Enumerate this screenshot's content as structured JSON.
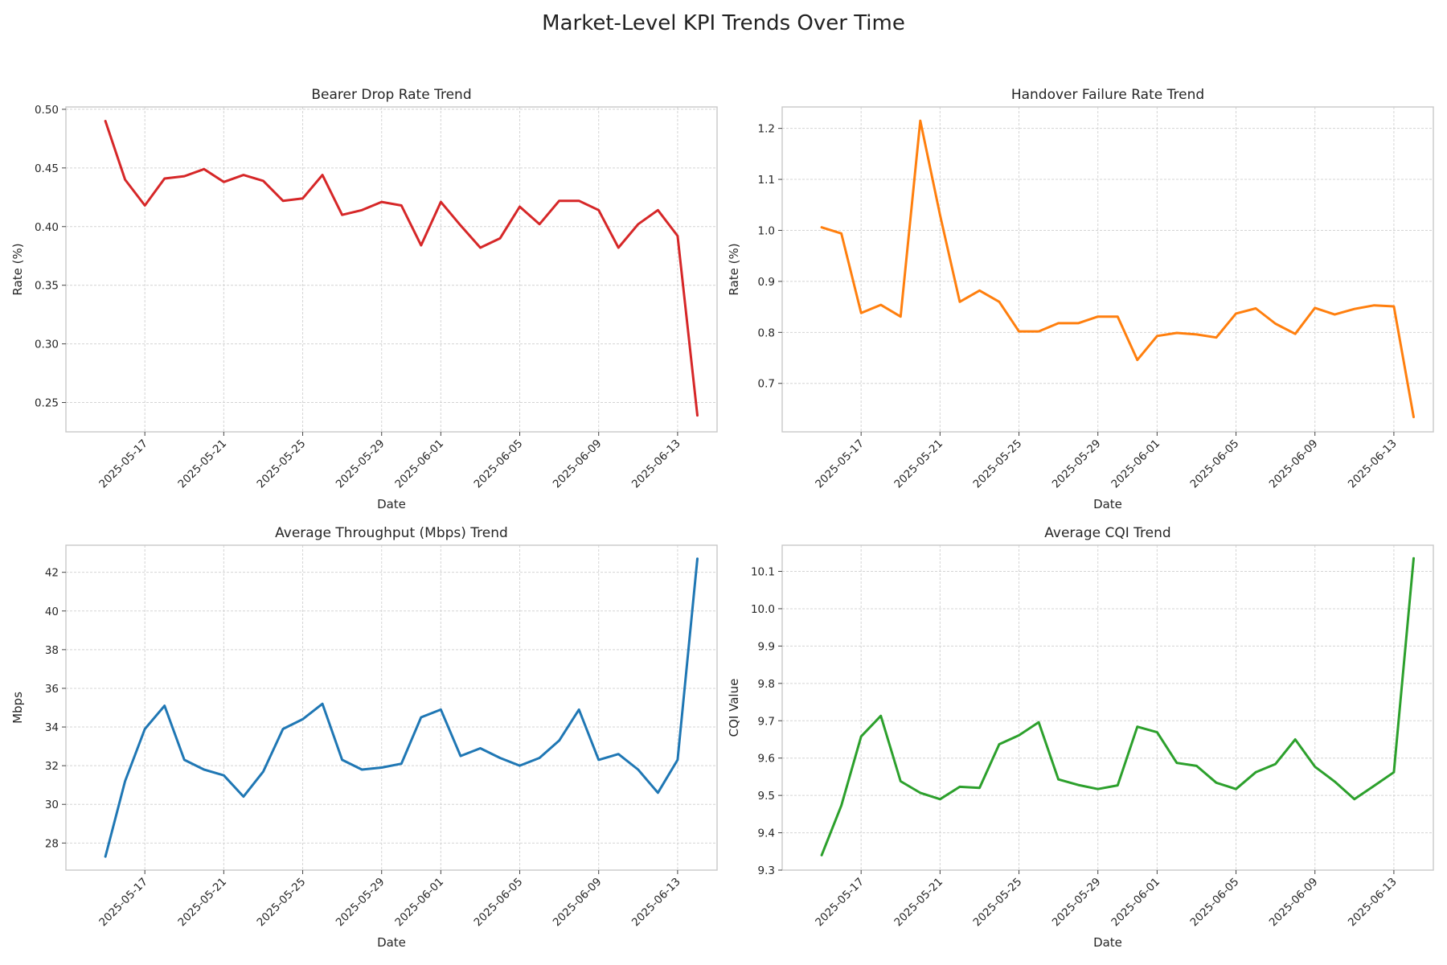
{
  "title": "Market-Level KPI Trends Over Time",
  "chart_data": [
    {
      "type": "line",
      "title": "Bearer Drop Rate Trend",
      "xlabel": "Date",
      "ylabel": "Rate (%)",
      "color": "#d62728",
      "ylim": [
        0.225,
        0.502
      ],
      "yticks": [
        0.25,
        0.3,
        0.35,
        0.4,
        0.45,
        0.5
      ],
      "ytick_labels": [
        "0.25",
        "0.30",
        "0.35",
        "0.40",
        "0.45",
        "0.50"
      ],
      "xlim": [
        "2025-05-13",
        "2025-06-15"
      ],
      "xticks": [
        "2025-05-17",
        "2025-05-21",
        "2025-05-25",
        "2025-05-29",
        "2025-06-01",
        "2025-06-05",
        "2025-06-09",
        "2025-06-13"
      ],
      "grid": true,
      "x": [
        "2025-05-15",
        "2025-05-16",
        "2025-05-17",
        "2025-05-18",
        "2025-05-19",
        "2025-05-20",
        "2025-05-21",
        "2025-05-22",
        "2025-05-23",
        "2025-05-24",
        "2025-05-25",
        "2025-05-26",
        "2025-05-27",
        "2025-05-28",
        "2025-05-29",
        "2025-05-30",
        "2025-05-31",
        "2025-06-01",
        "2025-06-02",
        "2025-06-03",
        "2025-06-04",
        "2025-06-05",
        "2025-06-06",
        "2025-06-07",
        "2025-06-08",
        "2025-06-09",
        "2025-06-10",
        "2025-06-11",
        "2025-06-12",
        "2025-06-13",
        "2025-06-14"
      ],
      "values": [
        0.49,
        0.44,
        0.418,
        0.441,
        0.443,
        0.449,
        0.438,
        0.444,
        0.439,
        0.422,
        0.424,
        0.444,
        0.41,
        0.414,
        0.421,
        0.418,
        0.384,
        0.421,
        0.401,
        0.382,
        0.39,
        0.417,
        0.402,
        0.422,
        0.422,
        0.414,
        0.382,
        0.402,
        0.414,
        0.392,
        0.239
      ]
    },
    {
      "type": "line",
      "title": "Handover Failure Rate Trend",
      "xlabel": "Date",
      "ylabel": "Rate (%)",
      "color": "#ff7f0e",
      "ylim": [
        0.605,
        1.242
      ],
      "yticks": [
        0.7,
        0.8,
        0.9,
        1.0,
        1.1,
        1.2
      ],
      "ytick_labels": [
        "0.7",
        "0.8",
        "0.9",
        "1.0",
        "1.1",
        "1.2"
      ],
      "xlim": [
        "2025-05-13",
        "2025-06-15"
      ],
      "xticks": [
        "2025-05-17",
        "2025-05-21",
        "2025-05-25",
        "2025-05-29",
        "2025-06-01",
        "2025-06-05",
        "2025-06-09",
        "2025-06-13"
      ],
      "grid": true,
      "x": [
        "2025-05-15",
        "2025-05-16",
        "2025-05-17",
        "2025-05-18",
        "2025-05-19",
        "2025-05-20",
        "2025-05-21",
        "2025-05-22",
        "2025-05-23",
        "2025-05-24",
        "2025-05-25",
        "2025-05-26",
        "2025-05-27",
        "2025-05-28",
        "2025-05-29",
        "2025-05-30",
        "2025-05-31",
        "2025-06-01",
        "2025-06-02",
        "2025-06-03",
        "2025-06-04",
        "2025-06-05",
        "2025-06-06",
        "2025-06-07",
        "2025-06-08",
        "2025-06-09",
        "2025-06-10",
        "2025-06-11",
        "2025-06-12",
        "2025-06-13",
        "2025-06-14"
      ],
      "values": [
        1.006,
        0.994,
        0.838,
        0.854,
        0.831,
        1.215,
        1.03,
        0.86,
        0.882,
        0.86,
        0.802,
        0.802,
        0.818,
        0.818,
        0.831,
        0.831,
        0.746,
        0.793,
        0.799,
        0.796,
        0.79,
        0.837,
        0.847,
        0.817,
        0.797,
        0.848,
        0.835,
        0.846,
        0.853,
        0.851,
        0.634
      ]
    },
    {
      "type": "line",
      "title": "Average Throughput (Mbps) Trend",
      "xlabel": "Date",
      "ylabel": "Mbps",
      "color": "#1f77b4",
      "ylim": [
        26.6,
        43.4
      ],
      "yticks": [
        28,
        30,
        32,
        34,
        36,
        38,
        40,
        42
      ],
      "ytick_labels": [
        "28",
        "30",
        "32",
        "34",
        "36",
        "38",
        "40",
        "42"
      ],
      "xlim": [
        "2025-05-13",
        "2025-06-15"
      ],
      "xticks": [
        "2025-05-17",
        "2025-05-21",
        "2025-05-25",
        "2025-05-29",
        "2025-06-01",
        "2025-06-05",
        "2025-06-09",
        "2025-06-13"
      ],
      "grid": true,
      "x": [
        "2025-05-15",
        "2025-05-16",
        "2025-05-17",
        "2025-05-18",
        "2025-05-19",
        "2025-05-20",
        "2025-05-21",
        "2025-05-22",
        "2025-05-23",
        "2025-05-24",
        "2025-05-25",
        "2025-05-26",
        "2025-05-27",
        "2025-05-28",
        "2025-05-29",
        "2025-05-30",
        "2025-05-31",
        "2025-06-01",
        "2025-06-02",
        "2025-06-03",
        "2025-06-04",
        "2025-06-05",
        "2025-06-06",
        "2025-06-07",
        "2025-06-08",
        "2025-06-09",
        "2025-06-10",
        "2025-06-11",
        "2025-06-12",
        "2025-06-13",
        "2025-06-14"
      ],
      "values": [
        27.3,
        31.2,
        33.9,
        35.1,
        32.3,
        31.8,
        31.5,
        30.4,
        31.7,
        33.9,
        34.4,
        35.2,
        32.3,
        31.8,
        31.9,
        32.1,
        34.5,
        34.9,
        32.5,
        32.9,
        32.4,
        32.0,
        32.4,
        33.3,
        34.9,
        32.3,
        32.6,
        31.8,
        30.6,
        32.3,
        42.7
      ]
    },
    {
      "type": "line",
      "title": "Average CQI Trend",
      "xlabel": "Date",
      "ylabel": "CQI Value",
      "color": "#2ca02c",
      "ylim": [
        9.3,
        10.17
      ],
      "yticks": [
        9.3,
        9.4,
        9.5,
        9.6,
        9.7,
        9.8,
        9.9,
        10.0,
        10.1
      ],
      "ytick_labels": [
        "9.3",
        "9.4",
        "9.5",
        "9.6",
        "9.7",
        "9.8",
        "9.9",
        "10.0",
        "10.1"
      ],
      "xlim": [
        "2025-05-13",
        "2025-06-15"
      ],
      "xticks": [
        "2025-05-17",
        "2025-05-21",
        "2025-05-25",
        "2025-05-29",
        "2025-06-01",
        "2025-06-05",
        "2025-06-09",
        "2025-06-13"
      ],
      "grid": true,
      "x": [
        "2025-05-15",
        "2025-05-16",
        "2025-05-17",
        "2025-05-18",
        "2025-05-19",
        "2025-05-20",
        "2025-05-21",
        "2025-05-22",
        "2025-05-23",
        "2025-05-24",
        "2025-05-25",
        "2025-05-26",
        "2025-05-27",
        "2025-05-28",
        "2025-05-29",
        "2025-05-30",
        "2025-05-31",
        "2025-06-01",
        "2025-06-02",
        "2025-06-03",
        "2025-06-04",
        "2025-06-05",
        "2025-06-06",
        "2025-06-07",
        "2025-06-08",
        "2025-06-09",
        "2025-06-10",
        "2025-06-11",
        "2025-06-12",
        "2025-06-13",
        "2025-06-14"
      ],
      "values": [
        9.34,
        9.473,
        9.658,
        9.713,
        9.538,
        9.507,
        9.49,
        9.523,
        9.52,
        9.637,
        9.661,
        9.696,
        9.543,
        9.528,
        9.517,
        9.527,
        9.684,
        9.669,
        9.587,
        9.579,
        9.534,
        9.517,
        9.562,
        9.584,
        9.65,
        9.577,
        9.537,
        9.49,
        9.526,
        9.562,
        10.135
      ]
    }
  ]
}
